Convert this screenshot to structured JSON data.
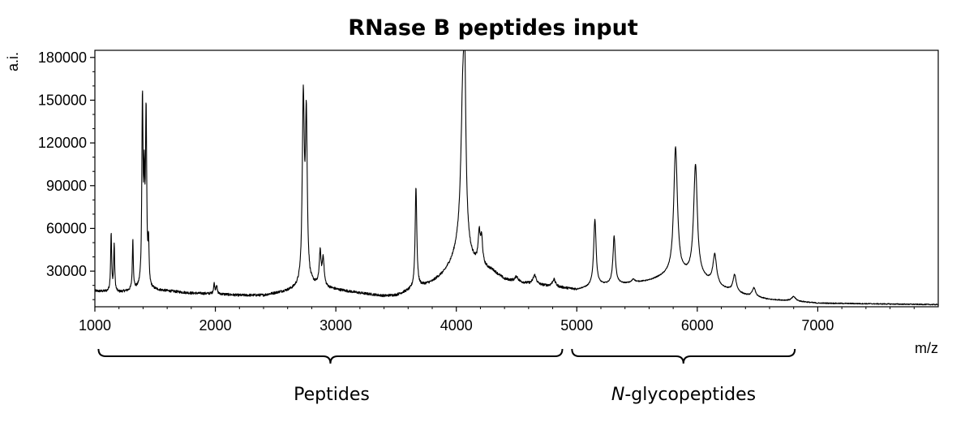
{
  "chart_data": {
    "type": "line",
    "title": "RNase B peptides input",
    "xlabel": "m/z",
    "ylabel": "a.i.",
    "xlim": [
      1000,
      8000
    ],
    "ylim": [
      5000,
      185000
    ],
    "x_ticks": [
      1000,
      2000,
      3000,
      4000,
      5000,
      6000,
      7000
    ],
    "x_tick_labels": [
      "1000",
      "2000",
      "3000",
      "4000",
      "5000",
      "6000",
      "7000"
    ],
    "y_ticks": [
      30000,
      60000,
      90000,
      120000,
      150000,
      180000
    ],
    "y_tick_labels": [
      "30000",
      "60000",
      "90000",
      "120000",
      "150000",
      "180000"
    ],
    "grid": false,
    "legend": "none",
    "line_color": "#000000",
    "baseline": [
      [
        1000,
        16000
      ],
      [
        1200,
        15000
      ],
      [
        1400,
        17000
      ],
      [
        1600,
        16000
      ],
      [
        1800,
        14500
      ],
      [
        2000,
        14000
      ],
      [
        2200,
        13000
      ],
      [
        2400,
        13000
      ],
      [
        2600,
        16000
      ],
      [
        2800,
        20000
      ],
      [
        3000,
        17000
      ],
      [
        3200,
        14500
      ],
      [
        3400,
        12500
      ],
      [
        3500,
        13000
      ],
      [
        3600,
        16000
      ],
      [
        3800,
        22000
      ],
      [
        3900,
        28000
      ],
      [
        4000,
        38000
      ],
      [
        4300,
        30000
      ],
      [
        4400,
        24000
      ],
      [
        4600,
        21000
      ],
      [
        4800,
        19000
      ],
      [
        5000,
        17000
      ],
      [
        5200,
        20000
      ],
      [
        5400,
        21000
      ],
      [
        5600,
        23000
      ],
      [
        5800,
        28000
      ],
      [
        6000,
        26000
      ],
      [
        6200,
        18000
      ],
      [
        6400,
        13000
      ],
      [
        6600,
        10000
      ],
      [
        6800,
        9000
      ],
      [
        7000,
        7500
      ],
      [
        7500,
        7000
      ],
      [
        8000,
        6500
      ]
    ],
    "peaks": [
      {
        "mz": 1135,
        "intensity": 56000,
        "width": 5
      },
      {
        "mz": 1160,
        "intensity": 48000,
        "width": 5
      },
      {
        "mz": 1315,
        "intensity": 52000,
        "width": 5
      },
      {
        "mz": 1395,
        "intensity": 147000,
        "width": 6
      },
      {
        "mz": 1410,
        "intensity": 80000,
        "width": 5
      },
      {
        "mz": 1425,
        "intensity": 138000,
        "width": 6
      },
      {
        "mz": 1445,
        "intensity": 45000,
        "width": 5
      },
      {
        "mz": 1990,
        "intensity": 21000,
        "width": 6
      },
      {
        "mz": 2010,
        "intensity": 20000,
        "width": 6
      },
      {
        "mz": 2730,
        "intensity": 147000,
        "width": 10
      },
      {
        "mz": 2755,
        "intensity": 132000,
        "width": 9
      },
      {
        "mz": 2870,
        "intensity": 42000,
        "width": 9
      },
      {
        "mz": 2895,
        "intensity": 38000,
        "width": 9
      },
      {
        "mz": 3665,
        "intensity": 89000,
        "width": 8
      },
      {
        "mz": 4055,
        "intensity": 149000,
        "width": 22
      },
      {
        "mz": 4070,
        "intensity": 120000,
        "width": 10
      },
      {
        "mz": 4190,
        "intensity": 54000,
        "width": 10
      },
      {
        "mz": 4210,
        "intensity": 50000,
        "width": 10
      },
      {
        "mz": 4500,
        "intensity": 26000,
        "width": 14
      },
      {
        "mz": 4650,
        "intensity": 27000,
        "width": 16
      },
      {
        "mz": 4810,
        "intensity": 24000,
        "width": 16
      },
      {
        "mz": 5150,
        "intensity": 66000,
        "width": 12
      },
      {
        "mz": 5310,
        "intensity": 54000,
        "width": 12
      },
      {
        "mz": 5470,
        "intensity": 24000,
        "width": 14
      },
      {
        "mz": 5650,
        "intensity": 23000,
        "width": 14
      },
      {
        "mz": 5820,
        "intensity": 116000,
        "width": 18
      },
      {
        "mz": 5985,
        "intensity": 104000,
        "width": 18
      },
      {
        "mz": 6145,
        "intensity": 41000,
        "width": 18
      },
      {
        "mz": 6310,
        "intensity": 27000,
        "width": 16
      },
      {
        "mz": 6470,
        "intensity": 18000,
        "width": 16
      },
      {
        "mz": 6800,
        "intensity": 12000,
        "width": 20
      }
    ]
  },
  "annotations": {
    "peptides_label": "Peptides",
    "glyco_label_italic": "N",
    "glyco_label_rest": "-glycopeptides"
  },
  "brackets": [
    {
      "label_key": "peptides",
      "from_mz": 1030,
      "to_mz": 4880
    },
    {
      "label_key": "glyco",
      "from_mz": 4960,
      "to_mz": 6810
    }
  ]
}
